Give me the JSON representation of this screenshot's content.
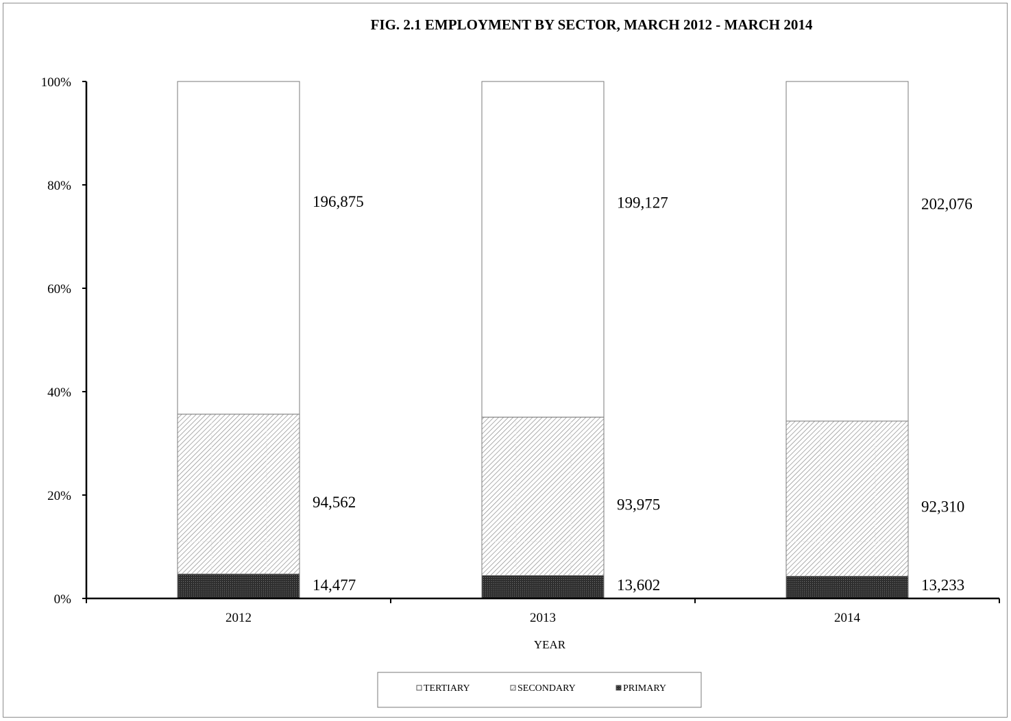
{
  "chart_data": {
    "type": "bar",
    "stacked": true,
    "normalized": true,
    "title": "FIG. 2.1 EMPLOYMENT BY SECTOR, MARCH 2012 - MARCH 2014",
    "xlabel": "YEAR",
    "ylabel": "",
    "ylim": [
      0,
      100
    ],
    "yticks": [
      "0%",
      "20%",
      "40%",
      "60%",
      "80%",
      "100%"
    ],
    "categories": [
      "2012",
      "2013",
      "2014"
    ],
    "series": [
      {
        "name": "PRIMARY",
        "values": [
          14477,
          13602,
          13233
        ],
        "labels": [
          "14,477",
          "13,602",
          "13,233"
        ],
        "color": "#3a3a3a",
        "pattern": "dark-crosshatch"
      },
      {
        "name": "SECONDARY",
        "values": [
          94562,
          93975,
          92310
        ],
        "labels": [
          "94,562",
          "93,975",
          "92,310"
        ],
        "color": "#ffffff",
        "pattern": "diagonal-hatch"
      },
      {
        "name": "TERTIARY",
        "values": [
          196875,
          199127,
          202076
        ],
        "labels": [
          "196,875",
          "199,127",
          "202,076"
        ],
        "color": "#ffffff",
        "pattern": "none"
      }
    ],
    "legend": {
      "position": "bottom",
      "order": [
        "TERTIARY",
        "SECONDARY",
        "PRIMARY"
      ]
    },
    "grid": false
  }
}
